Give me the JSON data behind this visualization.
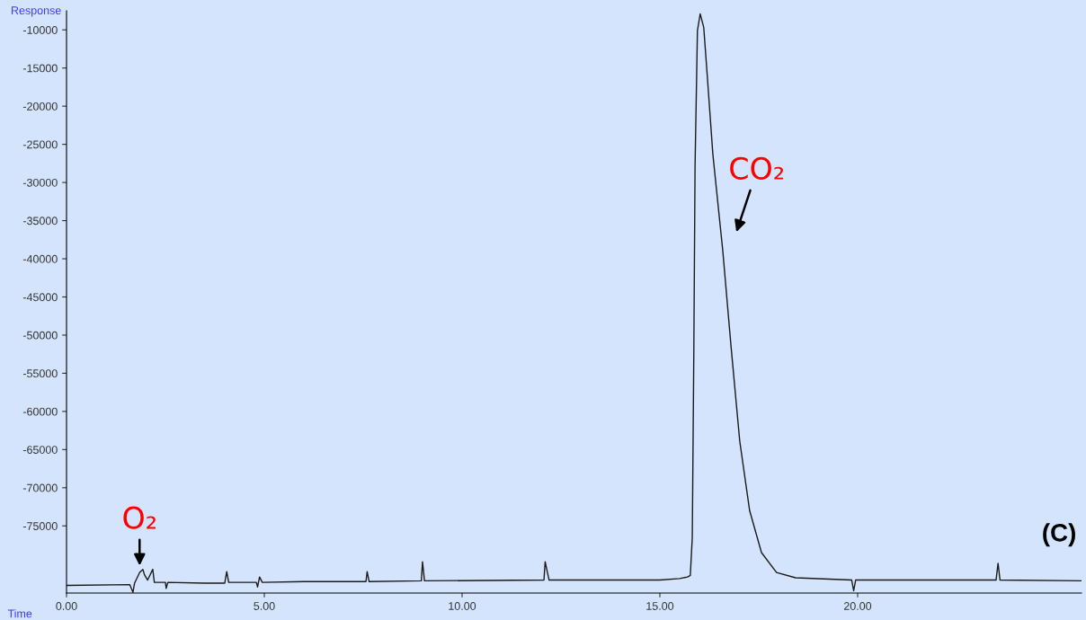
{
  "chart_data": {
    "type": "line",
    "xlabel": "Time",
    "ylabel": "Response",
    "x": [
      0,
      1.6,
      1.68,
      1.72,
      1.85,
      1.93,
      1.97,
      2.05,
      2.18,
      2.22,
      2.5,
      2.52,
      2.56,
      3.5,
      4.0,
      4.05,
      4.1,
      4.8,
      4.83,
      4.88,
      4.95,
      6.0,
      7.57,
      7.6,
      7.65,
      8.97,
      9.0,
      9.05,
      12.07,
      12.1,
      12.2,
      15.0,
      15.5,
      15.7,
      15.77,
      15.82,
      15.86,
      15.89,
      15.93,
      15.95,
      16.02,
      16.11,
      16.2,
      16.34,
      16.59,
      16.8,
      17.02,
      17.27,
      17.57,
      17.95,
      18.43,
      19.85,
      19.9,
      19.95,
      23.5,
      23.55,
      23.6,
      25.66
    ],
    "series": [
      {
        "color": "#1a1a1a",
        "values": [
          -82800,
          -82700,
          -83700,
          -82500,
          -81100,
          -80700,
          -81400,
          -82100,
          -80700,
          -82400,
          -82400,
          -83200,
          -82400,
          -82500,
          -82500,
          -81000,
          -82400,
          -82400,
          -83000,
          -81700,
          -82400,
          -82300,
          -82300,
          -81000,
          -82300,
          -82200,
          -79700,
          -82200,
          -82100,
          -79700,
          -82100,
          -82100,
          -81900,
          -81700,
          -81500,
          -76500,
          -51500,
          -27800,
          -16100,
          -10100,
          -7900,
          -9700,
          -16100,
          -26300,
          -38900,
          -51500,
          -63900,
          -73000,
          -78500,
          -81100,
          -81800,
          -82100,
          -83500,
          -82100,
          -82100,
          -79900,
          -82100,
          -82200
        ]
      }
    ],
    "xlim": [
      0,
      25.66
    ],
    "ylim": [
      -83800,
      -7500
    ],
    "xticks": [
      {
        "value": 0,
        "label": "0.00"
      },
      {
        "value": 5,
        "label": "5.00"
      },
      {
        "value": 10,
        "label": "10.00"
      },
      {
        "value": 15,
        "label": "15.00"
      },
      {
        "value": 20,
        "label": "20.00"
      }
    ],
    "yticks": [
      {
        "value": -10000,
        "label": "-10000"
      },
      {
        "value": -15000,
        "label": "-15000"
      },
      {
        "value": -20000,
        "label": "-20000"
      },
      {
        "value": -25000,
        "label": "-25000"
      },
      {
        "value": -30000,
        "label": "-30000"
      },
      {
        "value": -35000,
        "label": "-35000"
      },
      {
        "value": -40000,
        "label": "-40000"
      },
      {
        "value": -45000,
        "label": "-45000"
      },
      {
        "value": -50000,
        "label": "-50000"
      },
      {
        "value": -55000,
        "label": "-55000"
      },
      {
        "value": -60000,
        "label": "-60000"
      },
      {
        "value": -65000,
        "label": "-65000"
      },
      {
        "value": -70000,
        "label": "-70000"
      },
      {
        "value": -75000,
        "label": "-75000"
      }
    ],
    "grid": false,
    "marker": "none",
    "line_style": "solid",
    "annotations": [
      "O₂",
      "CO₂",
      "(C)"
    ]
  }
}
